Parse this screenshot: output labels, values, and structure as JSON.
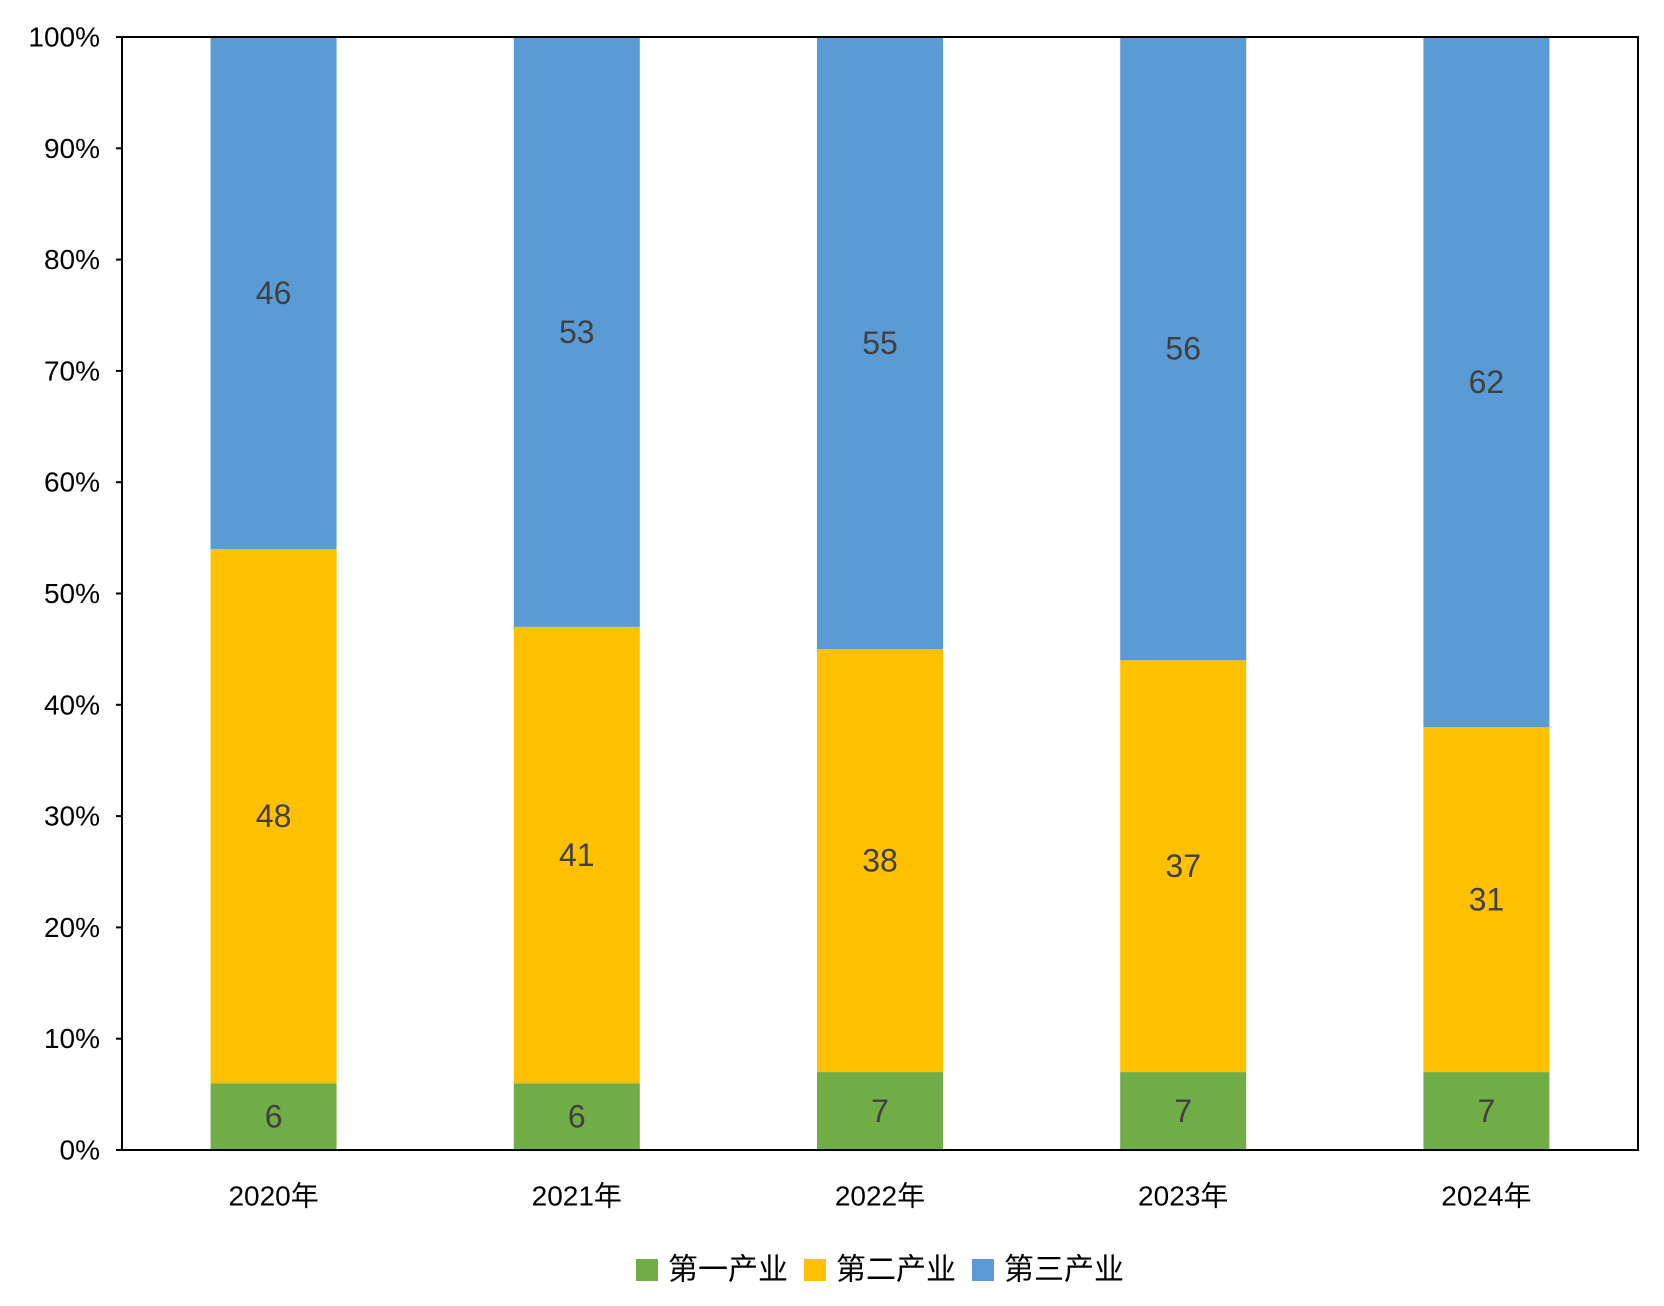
{
  "chart_data": {
    "type": "bar",
    "stacked": true,
    "percent_stacked": true,
    "title": "",
    "xlabel": "",
    "ylabel": "",
    "categories": [
      "2020年",
      "2021年",
      "2022年",
      "2023年",
      "2024年"
    ],
    "ylim": [
      0,
      100
    ],
    "y_ticks": [
      "0%",
      "10%",
      "20%",
      "30%",
      "40%",
      "50%",
      "60%",
      "70%",
      "80%",
      "90%",
      "100%"
    ],
    "series": [
      {
        "name": "第一产业",
        "color": "#70AD47",
        "values": [
          6,
          6,
          7,
          7,
          7
        ]
      },
      {
        "name": "第二产业",
        "color": "#FFC000",
        "values": [
          48,
          41,
          38,
          37,
          31
        ]
      },
      {
        "name": "第三产业",
        "color": "#5B9BD5",
        "values": [
          46,
          53,
          55,
          56,
          62
        ]
      }
    ],
    "data_labels": true,
    "grid": false,
    "legend_position": "bottom"
  }
}
